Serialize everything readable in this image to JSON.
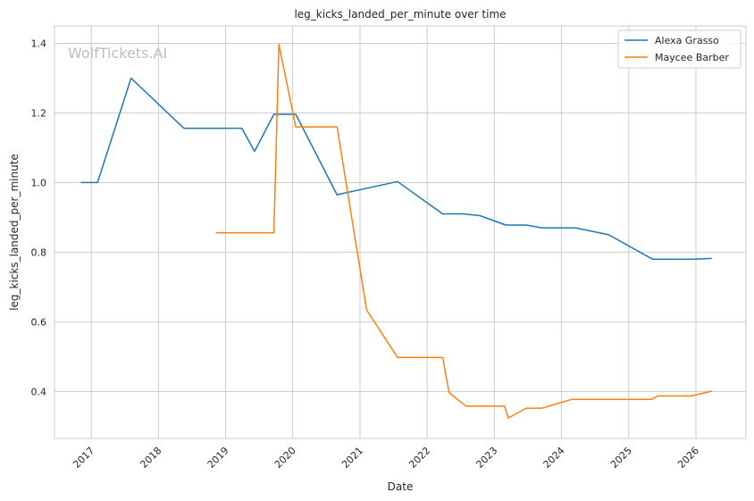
{
  "chart_data": {
    "type": "line",
    "title": "leg_kicks_landed_per_minute over time",
    "xlabel": "Date",
    "ylabel": "leg_kicks_landed_per_minute",
    "watermark": "WolfTickets.AI",
    "xlim": [
      "2016-06-15",
      "2026-09-30"
    ],
    "ylim": [
      0.265,
      1.45
    ],
    "x_ticks": [
      "2017",
      "2018",
      "2019",
      "2020",
      "2021",
      "2022",
      "2023",
      "2024",
      "2025",
      "2026"
    ],
    "y_ticks": [
      0.4,
      0.6,
      0.8,
      1.0,
      1.2,
      1.4
    ],
    "y_tick_labels": [
      "0.4",
      "0.6",
      "0.8",
      "1.0",
      "1.2",
      "1.4"
    ],
    "grid": true,
    "legend_position": "top-right",
    "series": [
      {
        "name": "Alexa Grasso",
        "color": "#1f77b4",
        "points": [
          [
            "2016-11-05",
            1.0
          ],
          [
            "2017-02-04",
            1.0
          ],
          [
            "2017-08-05",
            1.3
          ],
          [
            "2018-05-19",
            1.156
          ],
          [
            "2019-03-30",
            1.156
          ],
          [
            "2019-06-08",
            1.09
          ],
          [
            "2019-09-21",
            1.196
          ],
          [
            "2020-01-18",
            1.196
          ],
          [
            "2020-08-29",
            0.965
          ],
          [
            "2021-07-24",
            1.003
          ],
          [
            "2022-03-26",
            0.91
          ],
          [
            "2022-07-16",
            0.91
          ],
          [
            "2022-10-15",
            0.905
          ],
          [
            "2023-03-04",
            0.878
          ],
          [
            "2023-06-24",
            0.878
          ],
          [
            "2023-09-16",
            0.87
          ],
          [
            "2024-03-16",
            0.87
          ],
          [
            "2024-09-14",
            0.85
          ],
          [
            "2025-05-10",
            0.78
          ],
          [
            "2025-12-13",
            0.78
          ],
          [
            "2026-03-28",
            0.782
          ]
        ]
      },
      {
        "name": "Maycee Barber",
        "color": "#ff7f0e",
        "points": [
          [
            "2018-11-10",
            0.856
          ],
          [
            "2019-09-21",
            0.856
          ],
          [
            "2019-10-18",
            1.397
          ],
          [
            "2020-01-18",
            1.16
          ],
          [
            "2020-08-29",
            1.16
          ],
          [
            "2021-02-06",
            0.634
          ],
          [
            "2021-07-24",
            0.498
          ],
          [
            "2022-03-26",
            0.498
          ],
          [
            "2022-04-30",
            0.397
          ],
          [
            "2022-07-30",
            0.358
          ],
          [
            "2023-02-25",
            0.358
          ],
          [
            "2023-03-18",
            0.324
          ],
          [
            "2023-06-24",
            0.352
          ],
          [
            "2023-09-16",
            0.352
          ],
          [
            "2024-02-24",
            0.377
          ],
          [
            "2025-05-03",
            0.377
          ],
          [
            "2025-06-07",
            0.387
          ],
          [
            "2025-12-06",
            0.387
          ],
          [
            "2026-03-28",
            0.401
          ]
        ]
      }
    ]
  }
}
